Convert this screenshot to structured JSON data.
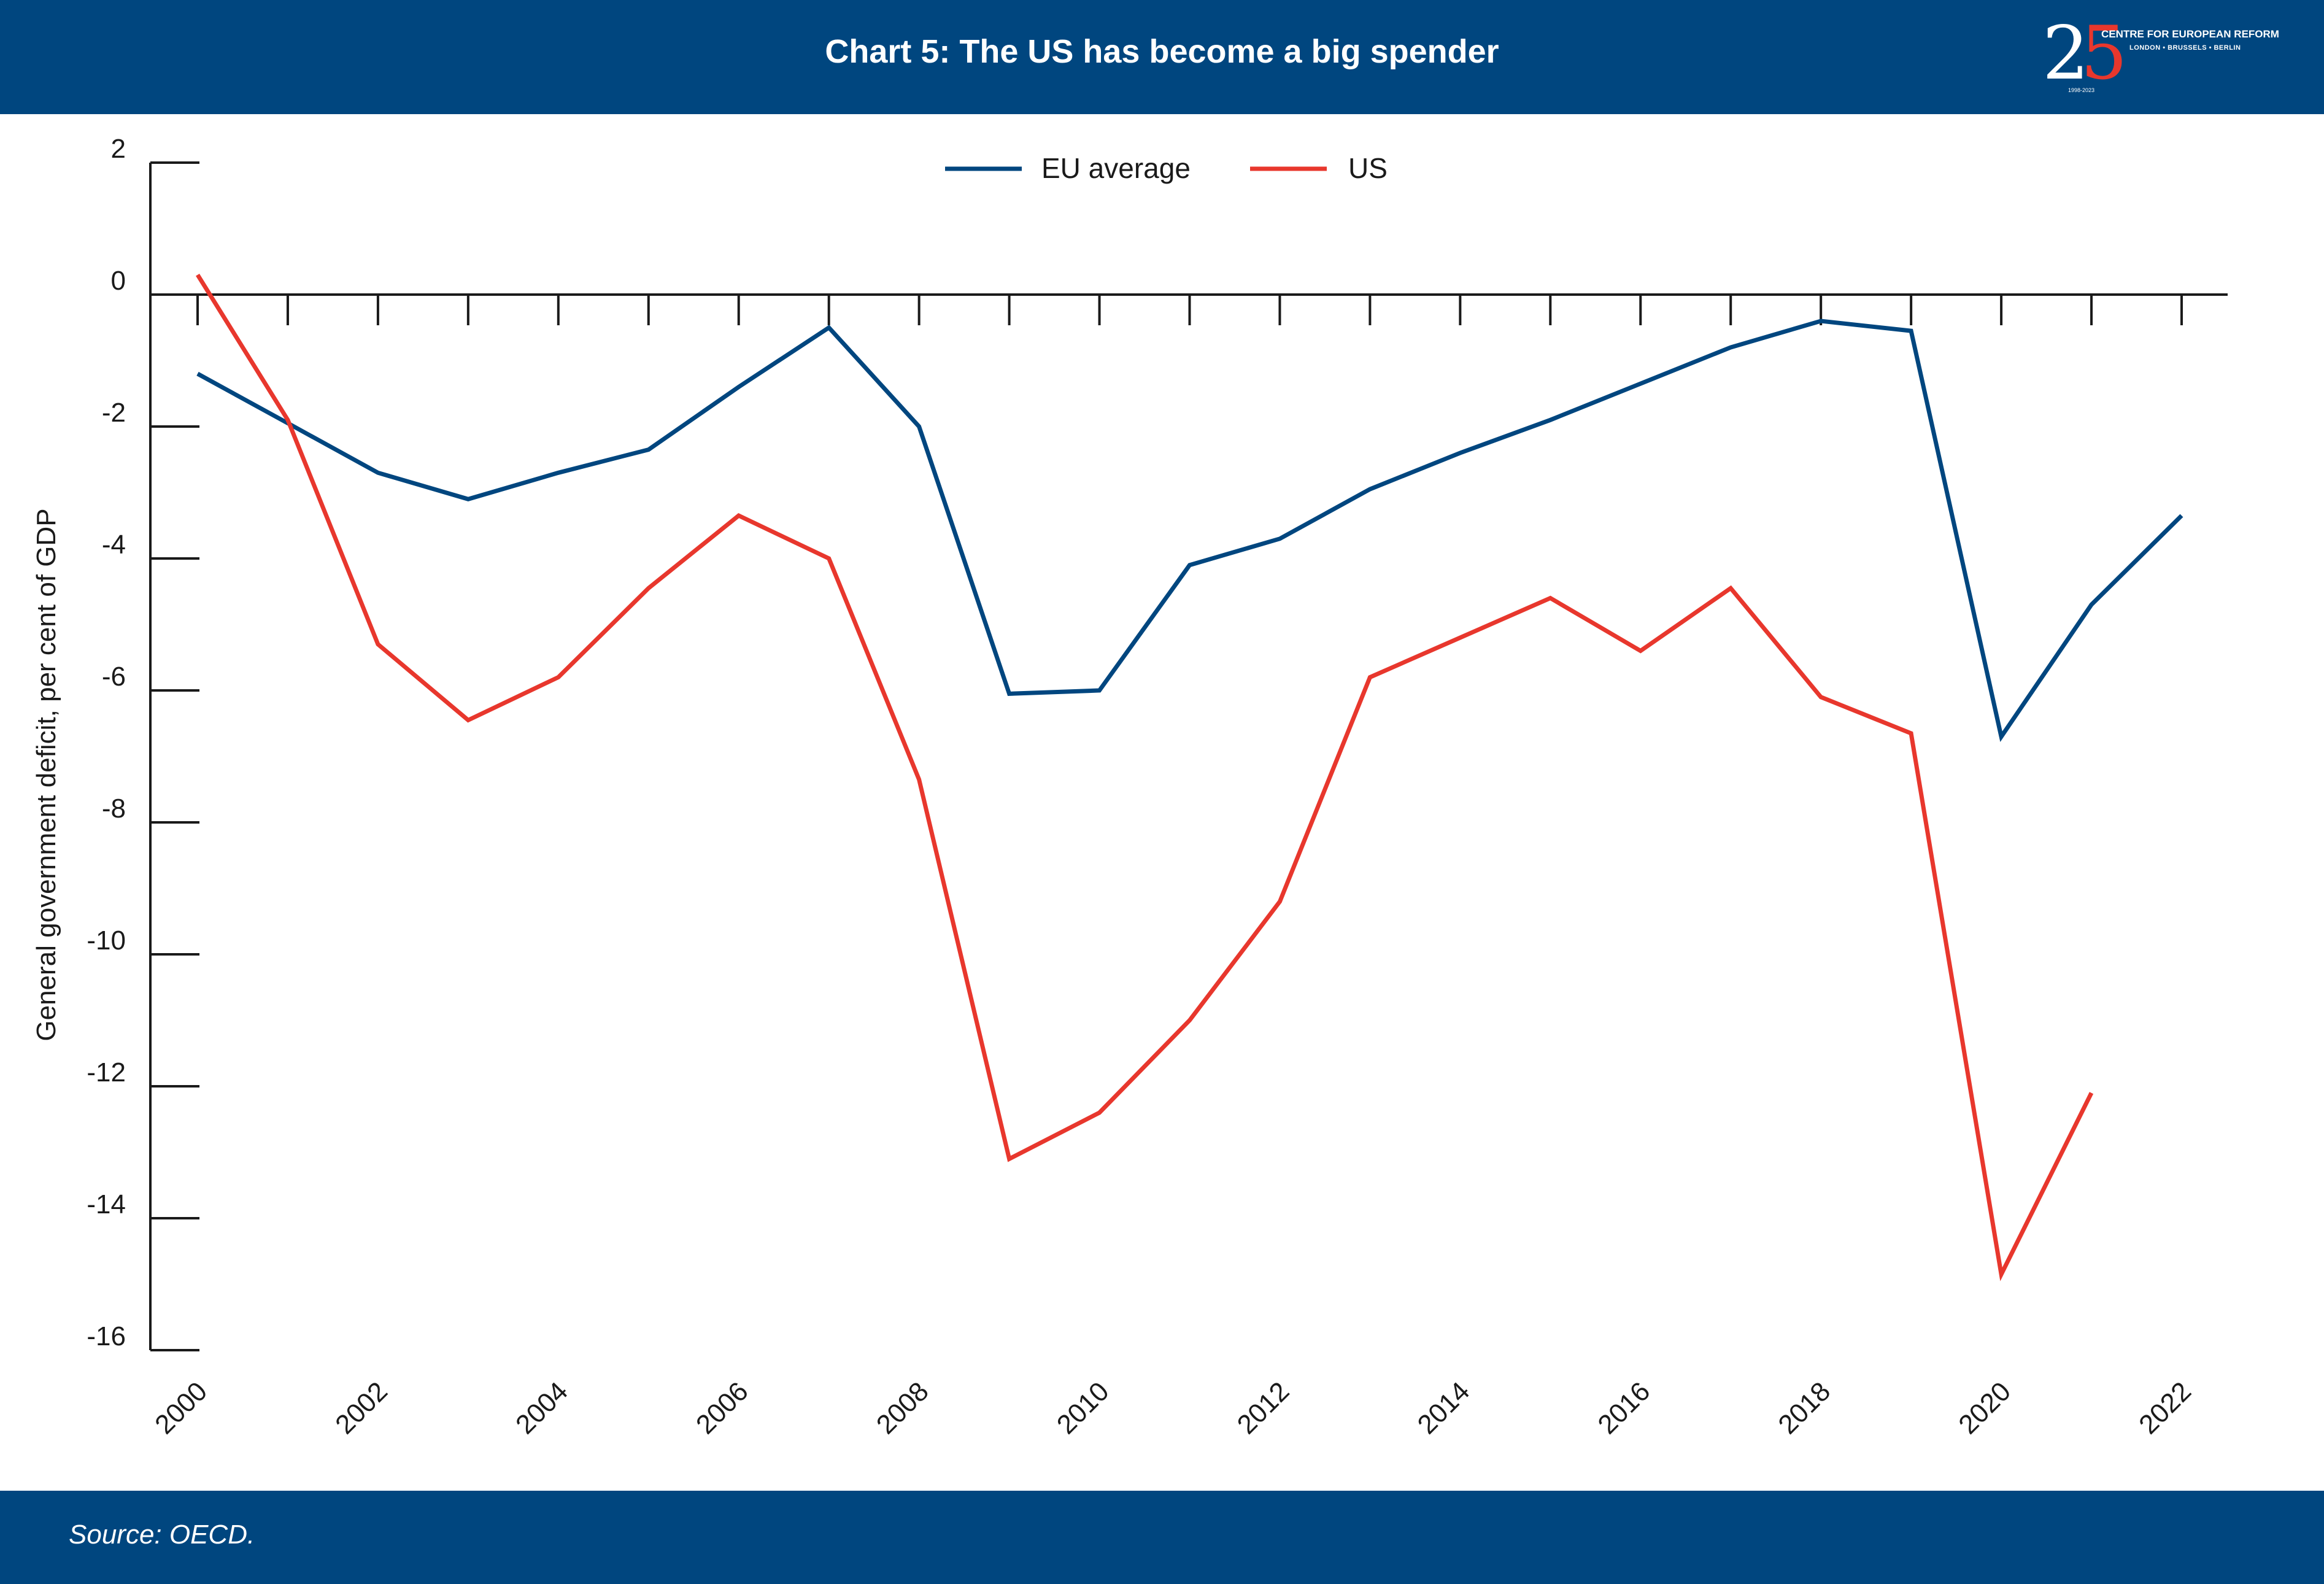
{
  "header": {
    "title": "Chart 5: The US has become a big spender",
    "logo": {
      "number_a": "2",
      "number_b": "5",
      "name": "CENTRE FOR EUROPEAN REFORM",
      "cities": "LONDON • BRUSSELS • BERLIN",
      "years": "1998-2023"
    }
  },
  "footer": {
    "source": "Source: OECD."
  },
  "chart_data": {
    "type": "line",
    "title": "Chart 5: The US has become a big spender",
    "xlabel": "",
    "ylabel": "General government deficit, per cent of GDP",
    "x": [
      2000,
      2001,
      2002,
      2003,
      2004,
      2005,
      2006,
      2007,
      2008,
      2009,
      2010,
      2011,
      2012,
      2013,
      2014,
      2015,
      2016,
      2017,
      2018,
      2019,
      2020,
      2021,
      2022
    ],
    "x_tick_labels": [
      "2000",
      "2002",
      "2004",
      "2006",
      "2008",
      "2010",
      "2012",
      "2014",
      "2016",
      "2018",
      "2020",
      "2022"
    ],
    "y_ticks": [
      2,
      0,
      -2,
      -4,
      -6,
      -8,
      -10,
      -12,
      -14,
      -16
    ],
    "ylim": [
      -16,
      2
    ],
    "xlim": [
      2000,
      2022
    ],
    "grid": false,
    "legend_position": "top-center",
    "series": [
      {
        "name": "EU average",
        "color": "#00467f",
        "values": [
          -1.2,
          -1.95,
          -2.7,
          -3.1,
          -2.7,
          -2.35,
          -1.4,
          -0.5,
          -2.0,
          -6.05,
          -6.0,
          -4.1,
          -3.7,
          -2.95,
          -2.4,
          -1.9,
          -1.35,
          -0.8,
          -0.4,
          -0.55,
          -6.7,
          -4.7,
          -3.35
        ]
      },
      {
        "name": "US",
        "color": "#e8372d",
        "values": [
          0.3,
          -1.9,
          -5.3,
          -6.45,
          -5.8,
          -4.45,
          -3.35,
          -4.0,
          -7.35,
          -13.1,
          -12.4,
          -11.0,
          -9.2,
          -5.8,
          -5.2,
          -4.6,
          -5.4,
          -4.45,
          -6.1,
          -6.65,
          -14.85,
          -12.1,
          null
        ]
      }
    ]
  }
}
